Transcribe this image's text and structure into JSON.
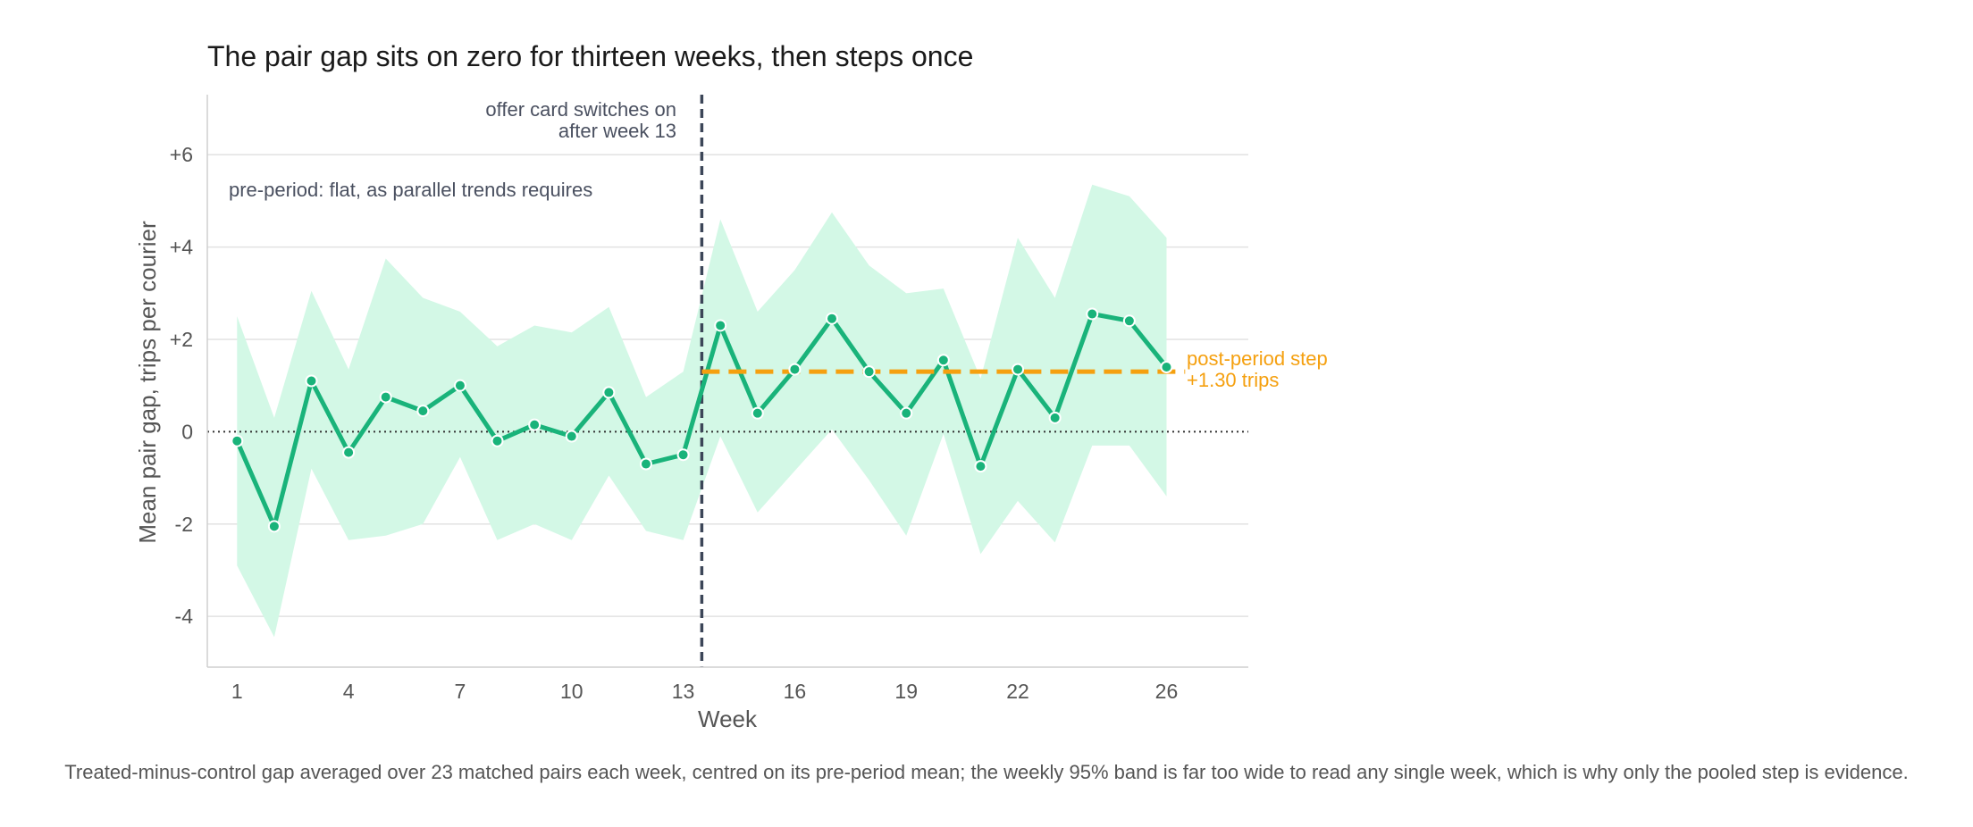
{
  "chart_data": {
    "type": "line",
    "title": "The pair gap sits on zero for thirteen weeks, then steps once",
    "xlabel": "Week",
    "ylabel": "Mean pair gap, trips per courier",
    "xlim": [
      0.2,
      28.2
    ],
    "ylim": [
      -5.1,
      7.3
    ],
    "x_ticks": [
      1,
      4,
      7,
      10,
      13,
      16,
      19,
      22,
      26
    ],
    "y_ticks": [
      -4,
      -2,
      0,
      2,
      4,
      6
    ],
    "y_tick_labels": [
      "-4",
      "-2",
      "0",
      "+2",
      "+4",
      "+6"
    ],
    "grid": true,
    "series": [
      {
        "x": [
          1,
          2,
          3,
          4,
          5,
          6,
          7,
          8,
          9,
          10,
          11,
          12,
          13,
          14,
          15,
          16,
          17,
          18,
          19,
          20,
          21,
          22,
          23,
          24,
          25,
          26
        ],
        "values": [
          -0.2,
          -2.05,
          1.1,
          -0.45,
          0.75,
          0.45,
          1.0,
          -0.2,
          0.15,
          -0.1,
          0.85,
          -0.7,
          -0.5,
          2.3,
          0.4,
          1.35,
          2.45,
          1.3,
          0.4,
          1.55,
          -0.75,
          1.35,
          0.3,
          2.55,
          2.4,
          1.4
        ],
        "band_upper": [
          2.5,
          0.3,
          3.05,
          1.35,
          3.75,
          2.9,
          2.6,
          1.85,
          2.3,
          2.15,
          2.7,
          0.75,
          1.3,
          4.6,
          2.6,
          3.5,
          4.75,
          3.6,
          3.0,
          3.1,
          1.15,
          4.2,
          2.9,
          5.35,
          5.1,
          4.2
        ],
        "band_lower": [
          -2.9,
          -4.45,
          -0.8,
          -2.35,
          -2.25,
          -2.0,
          -0.55,
          -2.35,
          -2.0,
          -2.35,
          -0.95,
          -2.15,
          -2.35,
          -0.1,
          -1.75,
          -0.85,
          0.05,
          -1.05,
          -2.25,
          -0.05,
          -2.65,
          -1.5,
          -2.4,
          -0.3,
          -0.3,
          -1.4
        ]
      }
    ],
    "reference_line_y": 0,
    "intervention_x": 13.5,
    "step": {
      "value": 1.3,
      "x_start": 13.5,
      "x_end": 26.5
    },
    "annotations": {
      "intervention_line1": "offer card switches on",
      "intervention_line2": "after week 13",
      "pre_period": "pre-period: flat, as parallel trends requires",
      "step_line1": "post-period step",
      "step_line2": "+1.30 trips"
    },
    "colors": {
      "line": "#19b37a",
      "band": "#d3f8e6",
      "step": "#f5a00f",
      "intervention": "#3c4658",
      "grid": "#e2e2e2",
      "axis": "#cfcfcf"
    }
  },
  "caption": "Treated-minus-control gap averaged over 23 matched pairs each week, centred on its pre-period mean; the weekly 95% band is far too wide to read any single week, which is why only the pooled step is evidence."
}
